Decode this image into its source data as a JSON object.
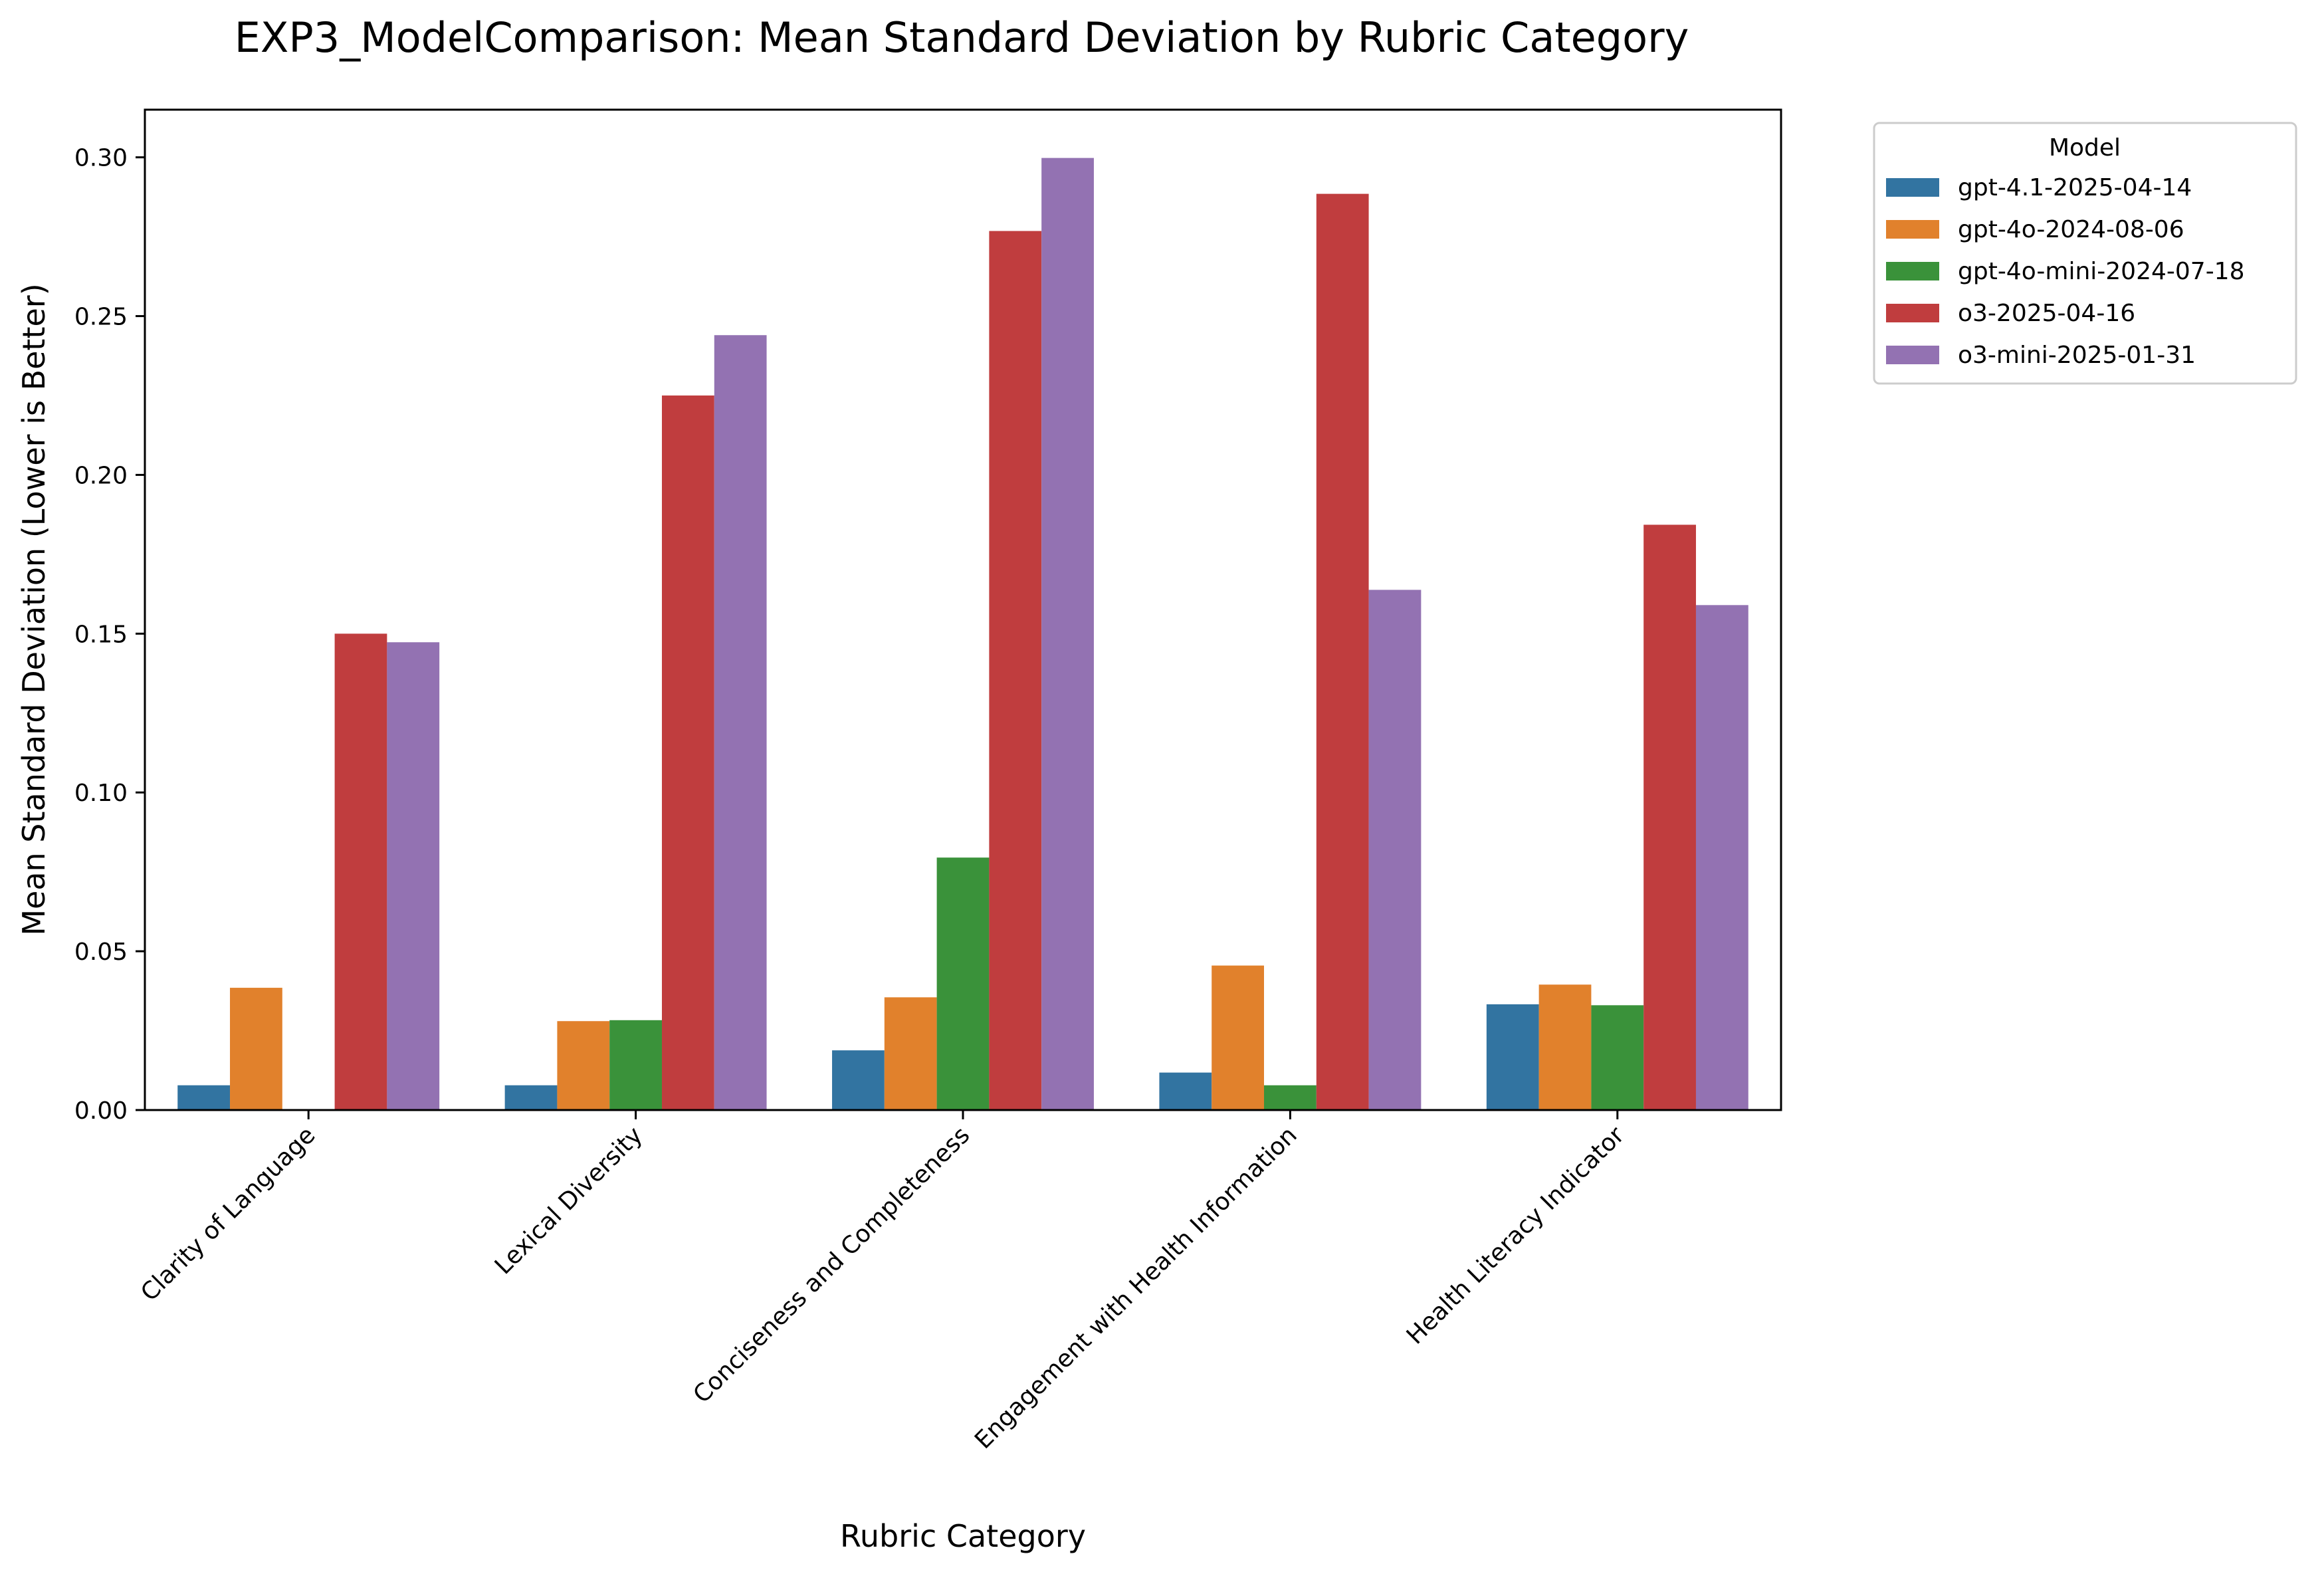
{
  "chart_data": {
    "type": "bar",
    "title": "EXP3_ModelComparison: Mean Standard Deviation by Rubric Category",
    "xlabel": "Rubric Category",
    "ylabel": "Mean Standard Deviation (Lower is Better)",
    "ylim": [
      0,
      0.315
    ],
    "yticks": [
      "0.00",
      "0.05",
      "0.10",
      "0.15",
      "0.20",
      "0.25",
      "0.30"
    ],
    "grid": false,
    "legend": {
      "title": "Model",
      "placement": "outside-top-right"
    },
    "categories": [
      "Clarity of Language",
      "Lexical Diversity",
      "Conciseness and Completeness",
      "Engagement with Health Information",
      "Health Literacy Indicator"
    ],
    "series": [
      {
        "name": "gpt-4.1-2025-04-14",
        "color": "#3274a1",
        "values": [
          0.0078,
          0.0078,
          0.0188,
          0.0118,
          0.0333
        ]
      },
      {
        "name": "gpt-4o-2024-08-06",
        "color": "#e1812c",
        "values": [
          0.0385,
          0.028,
          0.0355,
          0.0455,
          0.0395
        ]
      },
      {
        "name": "gpt-4o-mini-2024-07-18",
        "color": "#3a923a",
        "values": [
          0.0,
          0.0283,
          0.0795,
          0.0078,
          0.033
        ]
      },
      {
        "name": "o3-2025-04-16",
        "color": "#c03d3e",
        "values": [
          0.15,
          0.225,
          0.2768,
          0.2885,
          0.1843
        ]
      },
      {
        "name": "o3-mini-2025-01-31",
        "color": "#9372b2",
        "values": [
          0.1473,
          0.244,
          0.2998,
          0.1638,
          0.159
        ]
      }
    ]
  }
}
